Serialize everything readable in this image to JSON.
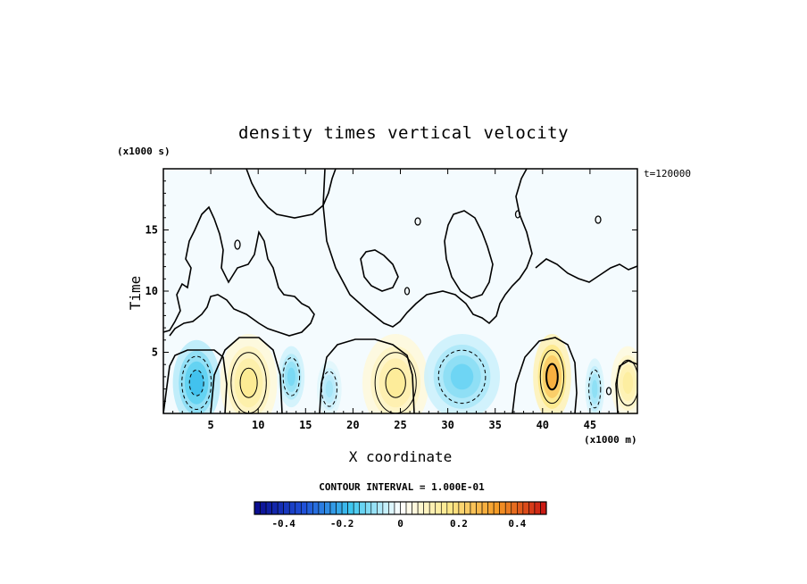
{
  "chart_data": {
    "type": "heatmap",
    "title": "density times vertical velocity",
    "xlabel": "X coordinate",
    "ylabel": "Time",
    "x_scale_label": "(x1000 m)",
    "y_scale_label": "(x1000 s)",
    "annotation": "t=120000",
    "contour_interval_label": "CONTOUR INTERVAL = 1.000E-01",
    "xlim": [
      0,
      50
    ],
    "ylim": [
      0,
      20
    ],
    "xticks": [
      5,
      10,
      15,
      20,
      25,
      30,
      35,
      40,
      45
    ],
    "yticks": [
      5,
      10,
      15
    ],
    "colorbar": {
      "range": [
        -0.5,
        0.5
      ],
      "ticks": [
        -0.4,
        -0.2,
        0,
        0.2,
        0.4
      ],
      "tick_labels": [
        "-0.4",
        "-0.2",
        "0",
        "0.2",
        "0.4"
      ],
      "colors": [
        "#0a0a8c",
        "#1f4fd8",
        "#3ec8ef",
        "#ffffff",
        "#fde98a",
        "#f59a25",
        "#c81212"
      ]
    },
    "features": [
      {
        "kind": "negative",
        "x": 3.5,
        "y": 2.5,
        "rx": 2.5,
        "ry": 3.5,
        "value": -0.18
      },
      {
        "kind": "positive",
        "x": 9.0,
        "y": 2.5,
        "rx": 3.0,
        "ry": 4.0,
        "value": 0.16
      },
      {
        "kind": "negative",
        "x": 13.5,
        "y": 3.0,
        "rx": 1.4,
        "ry": 2.5,
        "value": -0.12
      },
      {
        "kind": "negative",
        "x": 17.5,
        "y": 2.0,
        "rx": 1.3,
        "ry": 2.3,
        "value": -0.08
      },
      {
        "kind": "positive",
        "x": 24.5,
        "y": 2.5,
        "rx": 3.5,
        "ry": 4.0,
        "value": 0.15
      },
      {
        "kind": "negative",
        "x": 31.5,
        "y": 3.0,
        "rx": 4.0,
        "ry": 3.5,
        "value": -0.13
      },
      {
        "kind": "positive",
        "x": 41.0,
        "y": 3.0,
        "rx": 2.0,
        "ry": 3.5,
        "value": 0.3
      },
      {
        "kind": "negative",
        "x": 45.5,
        "y": 2.0,
        "rx": 1.0,
        "ry": 2.5,
        "value": -0.1
      },
      {
        "kind": "positive",
        "x": 49.0,
        "y": 2.5,
        "rx": 1.8,
        "ry": 3.0,
        "value": 0.14
      }
    ]
  }
}
